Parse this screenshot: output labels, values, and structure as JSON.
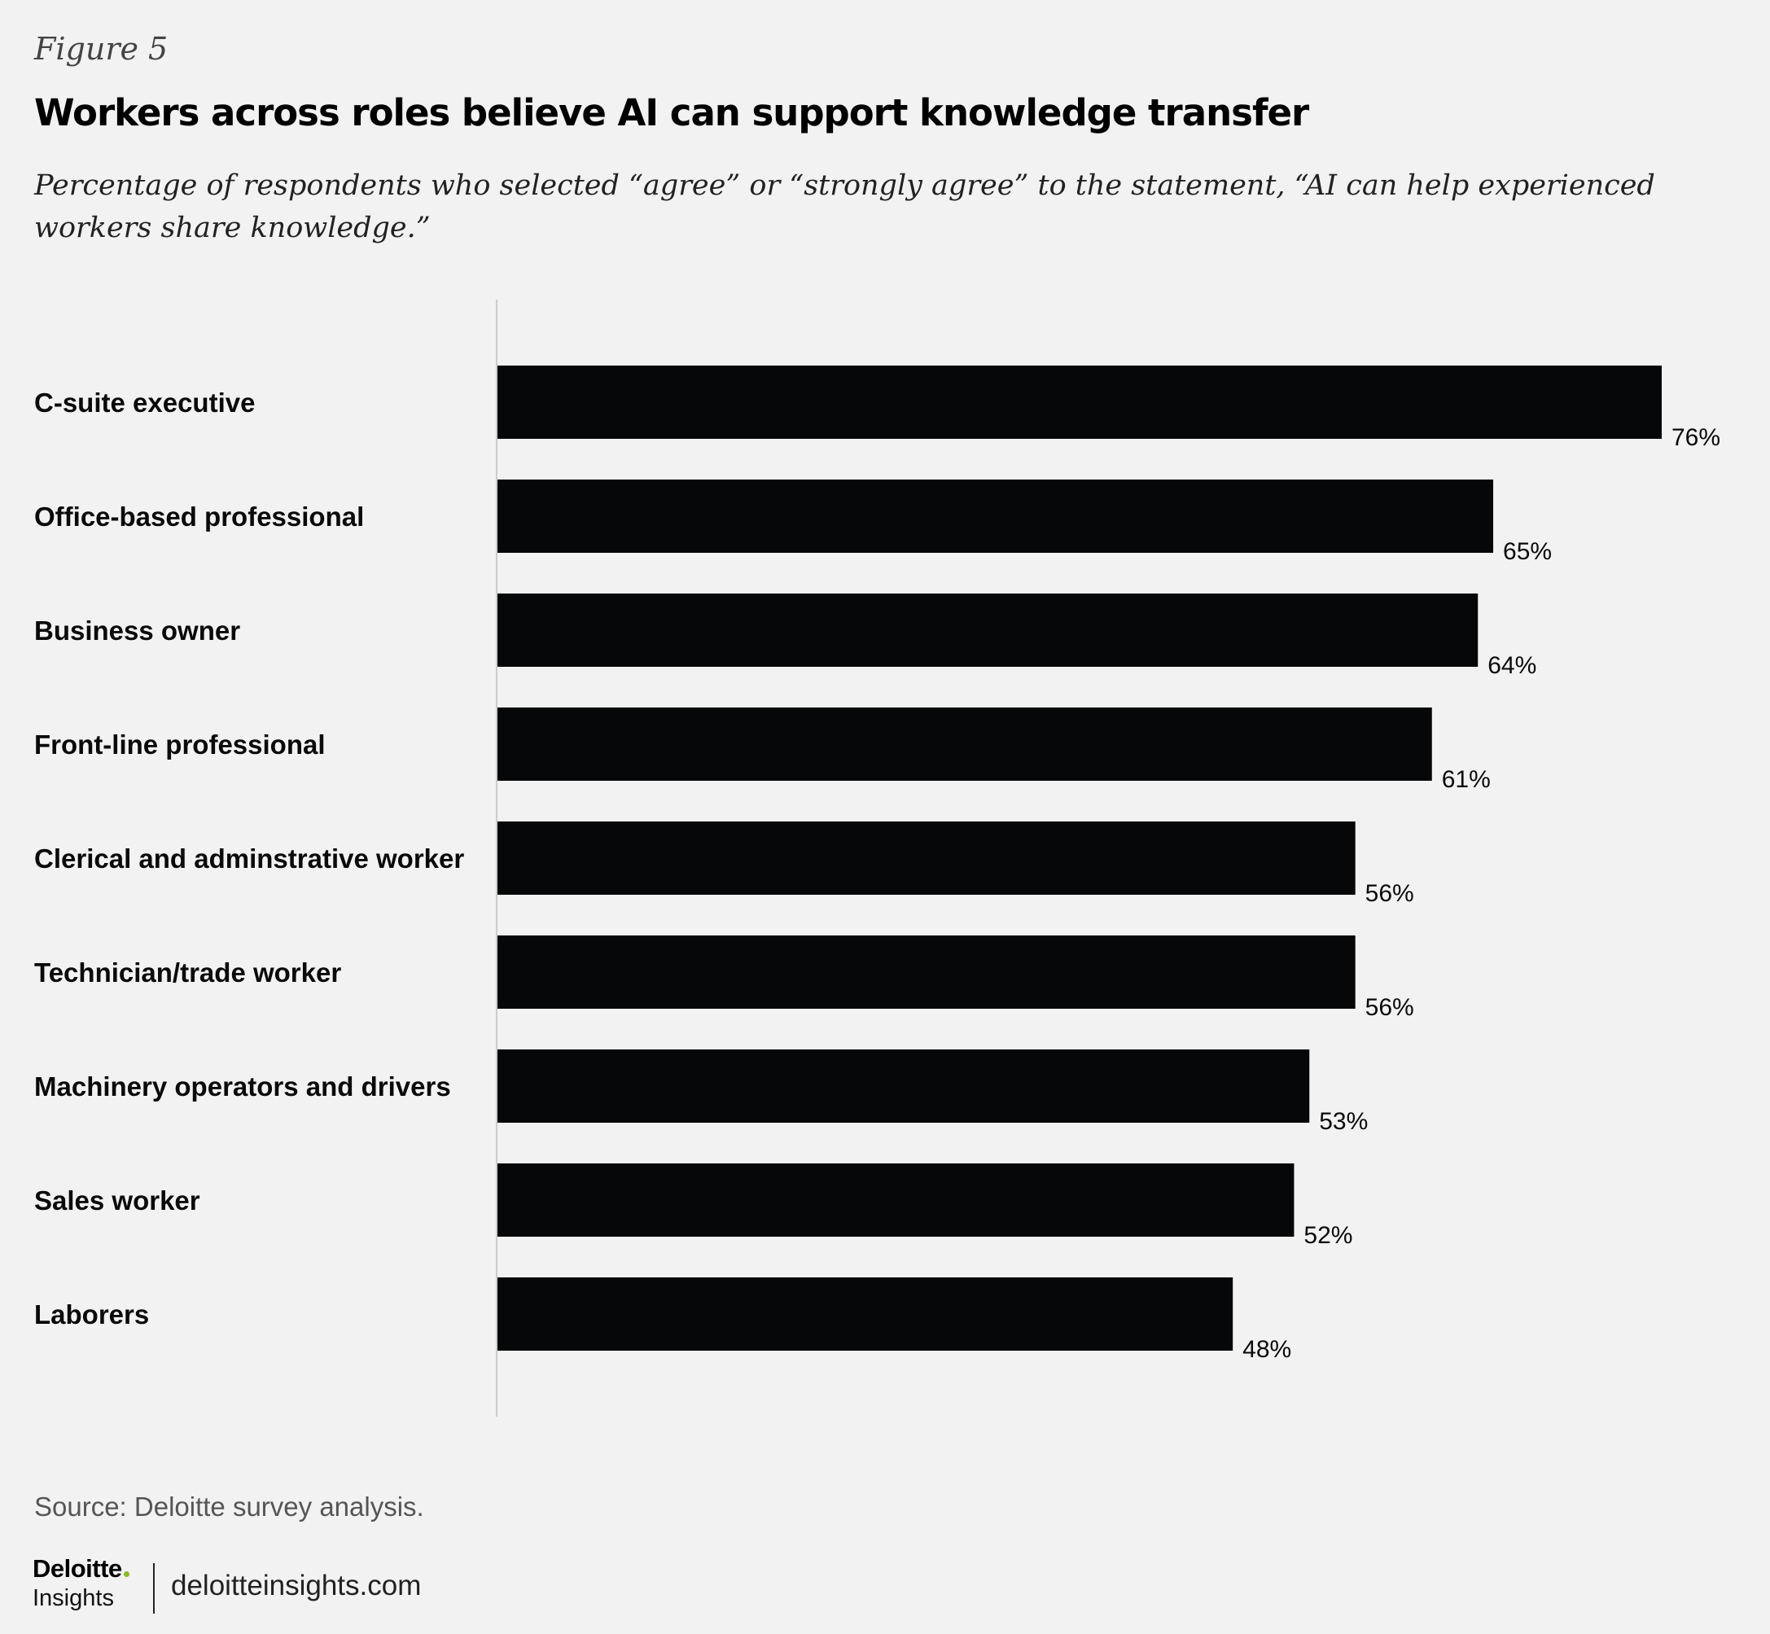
{
  "header": {
    "figure_label": "Figure 5",
    "title": "Workers across roles believe AI can support knowledge transfer",
    "subtitle": "Percentage of respondents who selected “agree” or “strongly agree” to the statement, “AI can help experienced workers share knowledge.”"
  },
  "chart_data": {
    "type": "bar",
    "orientation": "horizontal",
    "categories": [
      "C-suite executive",
      "Office-based professional",
      "Business owner",
      "Front-line professional",
      "Clerical and adminstrative worker",
      "Technician/trade worker",
      "Machinery operators and drivers",
      "Sales worker",
      "Laborers"
    ],
    "values": [
      76,
      65,
      64,
      61,
      56,
      56,
      53,
      52,
      48
    ],
    "value_labels": [
      "76%",
      "65%",
      "64%",
      "61%",
      "56%",
      "56%",
      "53%",
      "52%",
      "48%"
    ],
    "unit": "%",
    "xlim": [
      0,
      76
    ],
    "grid": false,
    "legend": "none",
    "bar_color": "#050708",
    "axis_color": "#cccccc"
  },
  "footer": {
    "source": "Source: Deloitte survey analysis.",
    "logo_main": "Deloitte",
    "logo_sub": "Insights",
    "site": "deloitteinsights.com",
    "logo_dot_color": "#86bc25"
  }
}
